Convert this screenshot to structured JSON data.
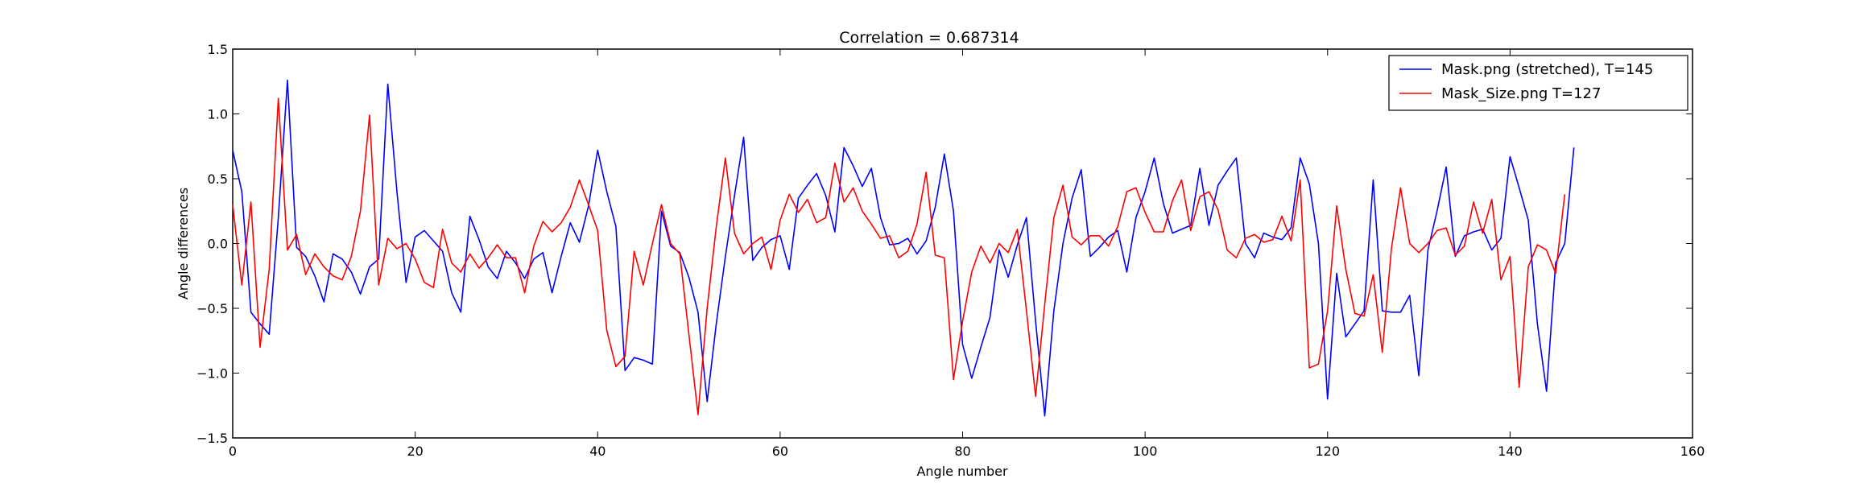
{
  "chart_data": {
    "type": "line",
    "title": "Correlation = 0.687314",
    "xlabel": "Angle number",
    "ylabel": "Angle differences",
    "xlim": [
      0,
      160
    ],
    "ylim": [
      -1.5,
      1.5
    ],
    "x_ticks": [
      "0",
      "20",
      "40",
      "60",
      "80",
      "100",
      "120",
      "140",
      "160"
    ],
    "y_ticks": [
      "1.5",
      "1.0",
      "0.5",
      "0.0",
      "−0.5",
      "−1.0",
      "−1.5"
    ],
    "grid": false,
    "legend_position": "top-right",
    "series": [
      {
        "name": "Mask.png (stretched), T=145",
        "color": "#0000ff",
        "values": [
          0.72,
          0.4,
          -0.53,
          -0.62,
          -0.7,
          0.2,
          1.26,
          -0.03,
          -0.1,
          -0.25,
          -0.45,
          -0.08,
          -0.12,
          -0.22,
          -0.39,
          -0.18,
          -0.12,
          1.23,
          0.4,
          -0.3,
          0.05,
          0.1,
          0.02,
          -0.06,
          -0.38,
          -0.53,
          0.21,
          0.03,
          -0.18,
          -0.27,
          -0.06,
          -0.15,
          -0.27,
          -0.12,
          -0.07,
          -0.38,
          -0.1,
          0.16,
          0.01,
          0.29,
          0.72,
          0.4,
          0.13,
          -0.98,
          -0.88,
          -0.9,
          -0.93,
          0.25,
          -0.02,
          -0.07,
          -0.26,
          -0.53,
          -1.22,
          -0.62,
          -0.1,
          0.37,
          0.82,
          -0.13,
          -0.03,
          0.03,
          0.06,
          -0.2,
          0.35,
          0.45,
          0.54,
          0.37,
          0.09,
          0.74,
          0.6,
          0.44,
          0.58,
          0.2,
          -0.01,
          0.0,
          0.04,
          -0.08,
          0.02,
          0.28,
          0.69,
          0.25,
          -0.78,
          -1.04,
          -0.8,
          -0.57,
          -0.05,
          -0.26,
          -0.01,
          0.2,
          -0.6,
          -1.33,
          -0.52,
          0.0,
          0.35,
          0.57,
          -0.1,
          -0.03,
          0.05,
          0.1,
          -0.22,
          0.2,
          0.4,
          0.66,
          0.31,
          0.08,
          0.11,
          0.14,
          0.58,
          0.14,
          0.45,
          0.56,
          0.66,
          0.0,
          -0.11,
          0.08,
          0.05,
          0.03,
          0.12,
          0.66,
          0.46,
          0.0,
          -1.2,
          -0.23,
          -0.72,
          -0.62,
          -0.52,
          0.49,
          -0.52,
          -0.53,
          -0.53,
          -0.4,
          -1.02,
          -0.05,
          0.25,
          0.59,
          -0.1,
          0.06,
          0.09,
          0.11,
          -0.05,
          0.04,
          0.67,
          0.43,
          0.18,
          -0.62,
          -1.14,
          -0.15,
          0.0,
          0.74
        ],
        "x_start": 0,
        "x_step": 1
      },
      {
        "name": "Mask_Size.png T=127",
        "color": "#ff0000",
        "values": [
          0.3,
          -0.32,
          0.32,
          -0.8,
          -0.2,
          1.12,
          -0.05,
          0.07,
          -0.24,
          -0.08,
          -0.18,
          -0.25,
          -0.28,
          -0.1,
          0.25,
          0.99,
          -0.32,
          0.04,
          -0.04,
          0.0,
          -0.12,
          -0.3,
          -0.34,
          0.11,
          -0.15,
          -0.22,
          -0.08,
          -0.19,
          -0.11,
          -0.01,
          -0.11,
          -0.11,
          -0.38,
          -0.02,
          0.17,
          0.09,
          0.16,
          0.28,
          0.49,
          0.3,
          0.1,
          -0.67,
          -0.95,
          -0.87,
          -0.06,
          -0.32,
          0.0,
          0.3,
          0.0,
          -0.08,
          -0.7,
          -1.32,
          -0.5,
          0.13,
          0.66,
          0.08,
          -0.08,
          0.0,
          0.05,
          -0.2,
          0.18,
          0.38,
          0.24,
          0.34,
          0.16,
          0.2,
          0.62,
          0.32,
          0.43,
          0.25,
          0.15,
          0.04,
          0.06,
          -0.11,
          -0.06,
          0.15,
          0.55,
          -0.09,
          -0.11,
          -1.05,
          -0.6,
          -0.22,
          -0.02,
          -0.15,
          0.0,
          -0.07,
          0.11,
          -0.52,
          -1.18,
          -0.47,
          0.2,
          0.45,
          0.05,
          -0.01,
          0.06,
          0.06,
          -0.02,
          0.13,
          0.4,
          0.43,
          0.24,
          0.09,
          0.09,
          0.33,
          0.49,
          0.1,
          0.36,
          0.4,
          0.26,
          -0.05,
          -0.11,
          0.04,
          0.07,
          0.01,
          0.03,
          0.21,
          0.02,
          0.49,
          -0.96,
          -0.93,
          -0.52,
          0.29,
          -0.2,
          -0.54,
          -0.56,
          -0.24,
          -0.84,
          -0.04,
          0.43,
          0.0,
          -0.07,
          0.0,
          0.1,
          0.12,
          -0.09,
          -0.02,
          0.32,
          0.08,
          0.34,
          -0.28,
          -0.1,
          -1.11,
          -0.18,
          -0.01,
          -0.05,
          -0.23,
          0.38
        ],
        "x_start": 0,
        "x_step": 1
      }
    ]
  }
}
